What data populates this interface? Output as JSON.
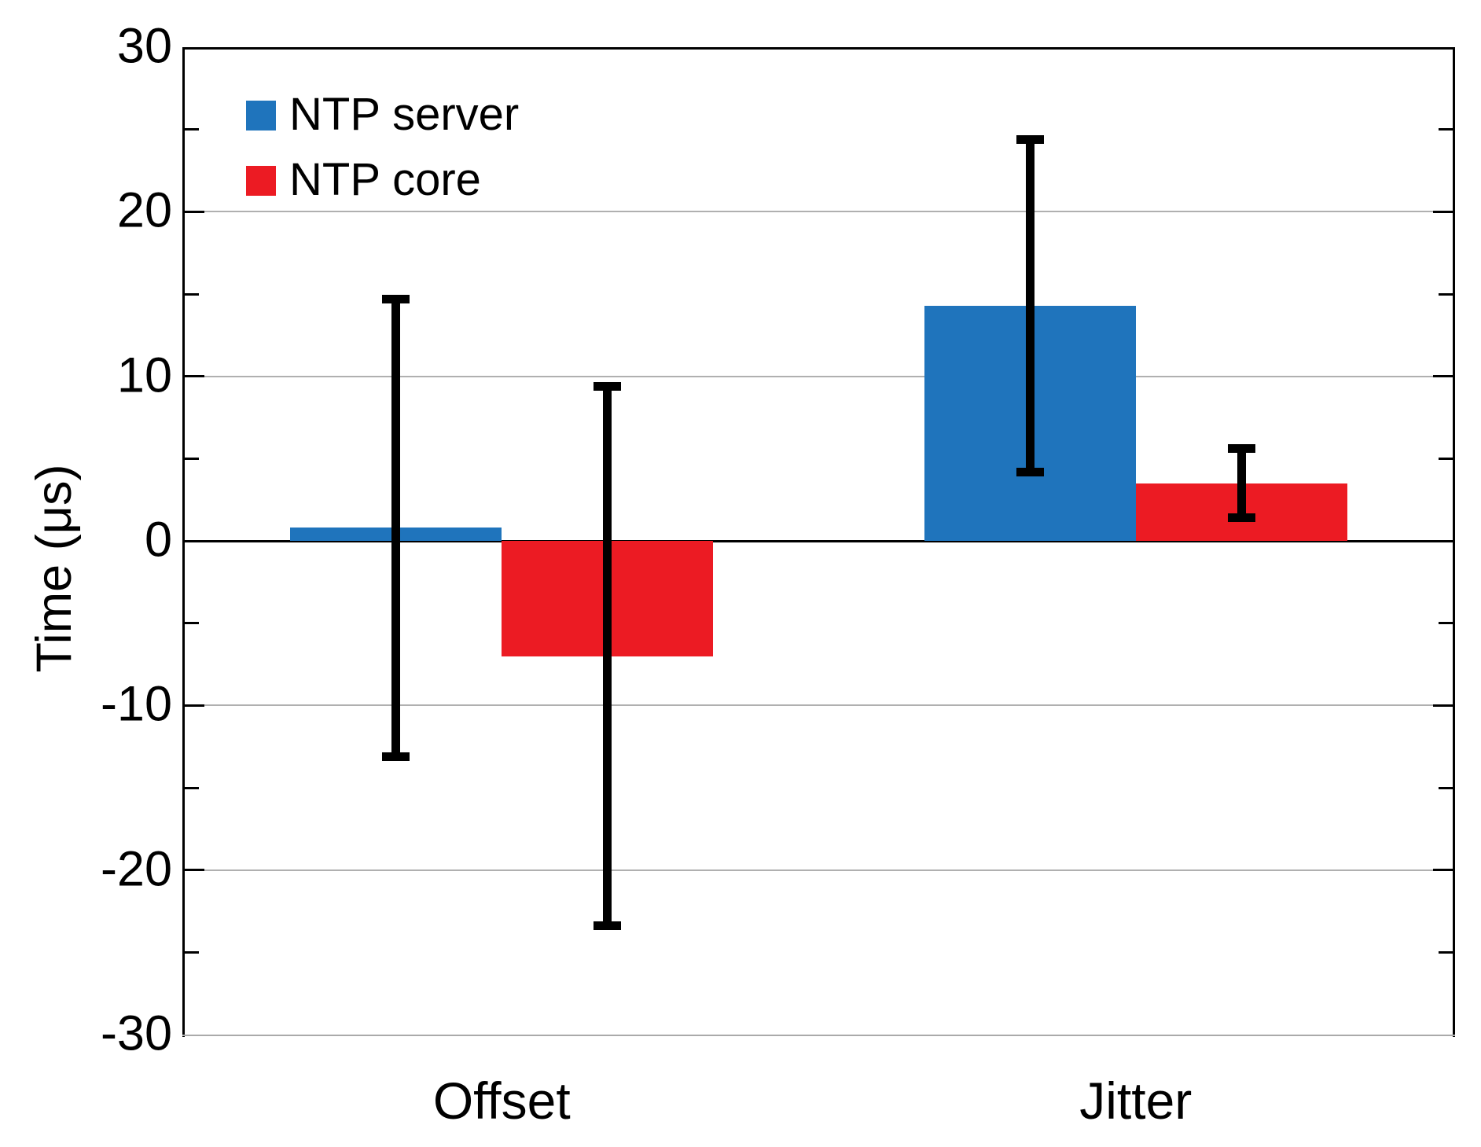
{
  "chart_data": {
    "type": "bar",
    "title": "",
    "categories": [
      "Offset",
      "Jitter"
    ],
    "series": [
      {
        "name": "NTP server",
        "color": "#1f74bc",
        "values": [
          0.8,
          14.3
        ],
        "errors": [
          13.9,
          10.1
        ]
      },
      {
        "name": "NTP core",
        "color": "#ec1b23",
        "values": [
          -7.0,
          3.5
        ],
        "errors": [
          16.4,
          2.1
        ]
      }
    ],
    "xlabel": "",
    "ylabel": "Time (μs)",
    "ylim": [
      -30,
      30
    ],
    "yticks": [
      -30,
      -20,
      -10,
      0,
      10,
      20,
      30
    ],
    "minor_yticks": [
      -25,
      -15,
      -5,
      5,
      15,
      25
    ],
    "grid": "horizontal-major",
    "grid_color": "#b0b0b0",
    "axis_color": "#000000",
    "error_bar_color": "#000000",
    "zero_line": true,
    "legend_position": "upper-left-inside",
    "legend_labels": [
      "NTP server",
      "NTP core"
    ]
  }
}
